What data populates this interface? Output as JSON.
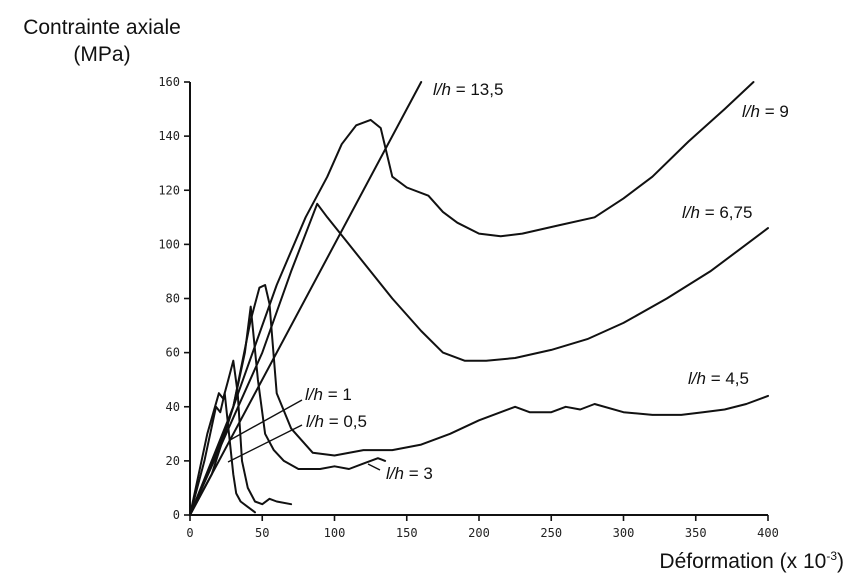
{
  "chart_data": {
    "type": "line",
    "title": "",
    "ylabel_line1": "Contrainte axiale",
    "ylabel_line2": "(MPa)",
    "xlabel_main": "Déformation (x 10",
    "xlabel_exp": "-3",
    "xlabel_close": ")",
    "xlim": [
      0,
      400
    ],
    "ylim": [
      0,
      160
    ],
    "x_ticks": [
      "0",
      "50",
      "100",
      "150",
      "200",
      "250",
      "300",
      "350",
      "400"
    ],
    "y_ticks": [
      "0",
      "20",
      "40",
      "60",
      "80",
      "100",
      "120",
      "140",
      "160"
    ],
    "grid": false,
    "series": [
      {
        "name": "l/h = 13,5",
        "label_var": "l/h",
        "label_val": " = 13,5",
        "points": [
          [
            0,
            0
          ],
          [
            160,
            160
          ]
        ]
      },
      {
        "name": "l/h = 9",
        "label_var": "l/h",
        "label_val": " = 9",
        "points": [
          [
            0,
            0
          ],
          [
            20,
            25
          ],
          [
            40,
            55
          ],
          [
            60,
            85
          ],
          [
            80,
            110
          ],
          [
            95,
            125
          ],
          [
            105,
            137
          ],
          [
            115,
            144
          ],
          [
            125,
            146
          ],
          [
            132,
            143
          ],
          [
            140,
            125
          ],
          [
            150,
            121
          ],
          [
            165,
            118
          ],
          [
            175,
            112
          ],
          [
            185,
            108
          ],
          [
            200,
            104
          ],
          [
            215,
            103
          ],
          [
            230,
            104
          ],
          [
            255,
            107
          ],
          [
            280,
            110
          ],
          [
            300,
            117
          ],
          [
            320,
            125
          ],
          [
            345,
            138
          ],
          [
            370,
            150
          ],
          [
            390,
            160
          ]
        ]
      },
      {
        "name": "l/h = 6,75",
        "label_var": "l/h",
        "label_val": " = 6,75",
        "points": [
          [
            0,
            0
          ],
          [
            25,
            30
          ],
          [
            50,
            60
          ],
          [
            70,
            90
          ],
          [
            88,
            115
          ],
          [
            95,
            110
          ],
          [
            110,
            100
          ],
          [
            125,
            90
          ],
          [
            140,
            80
          ],
          [
            160,
            68
          ],
          [
            175,
            60
          ],
          [
            190,
            57
          ],
          [
            205,
            57
          ],
          [
            225,
            58
          ],
          [
            250,
            61
          ],
          [
            275,
            65
          ],
          [
            300,
            71
          ],
          [
            330,
            80
          ],
          [
            360,
            90
          ],
          [
            380,
            98
          ],
          [
            400,
            106
          ]
        ]
      },
      {
        "name": "l/h = 4,5",
        "label_var": "l/h",
        "label_val": " = 4,5",
        "points": [
          [
            0,
            0
          ],
          [
            15,
            15
          ],
          [
            30,
            40
          ],
          [
            42,
            72
          ],
          [
            48,
            84
          ],
          [
            52,
            85
          ],
          [
            55,
            78
          ],
          [
            60,
            45
          ],
          [
            70,
            32
          ],
          [
            85,
            23
          ],
          [
            100,
            22
          ],
          [
            120,
            24
          ],
          [
            140,
            24
          ],
          [
            160,
            26
          ],
          [
            180,
            30
          ],
          [
            200,
            35
          ],
          [
            225,
            40
          ],
          [
            235,
            38
          ],
          [
            250,
            38
          ],
          [
            260,
            40
          ],
          [
            270,
            39
          ],
          [
            280,
            41
          ],
          [
            300,
            38
          ],
          [
            320,
            37
          ],
          [
            340,
            37
          ],
          [
            355,
            38
          ],
          [
            370,
            39
          ],
          [
            385,
            41
          ],
          [
            400,
            44
          ]
        ]
      },
      {
        "name": "l/h = 3",
        "label_var": "l/h",
        "label_val": " = 3",
        "points": [
          [
            0,
            0
          ],
          [
            15,
            20
          ],
          [
            30,
            40
          ],
          [
            38,
            60
          ],
          [
            42,
            77
          ],
          [
            47,
            50
          ],
          [
            52,
            30
          ],
          [
            58,
            24
          ],
          [
            65,
            20
          ],
          [
            75,
            17
          ],
          [
            90,
            17
          ],
          [
            100,
            18
          ],
          [
            110,
            17
          ],
          [
            120,
            19
          ],
          [
            130,
            21
          ],
          [
            135,
            20
          ]
        ]
      },
      {
        "name": "l/h = 1",
        "label_var": "l/h",
        "label_val": " = 1",
        "points": [
          [
            0,
            0
          ],
          [
            12,
            30
          ],
          [
            20,
            45
          ],
          [
            23,
            43
          ],
          [
            26,
            49
          ],
          [
            30,
            57
          ],
          [
            33,
            45
          ],
          [
            36,
            20
          ],
          [
            40,
            10
          ],
          [
            45,
            5
          ],
          [
            50,
            4
          ],
          [
            55,
            6
          ],
          [
            60,
            5
          ],
          [
            70,
            4
          ]
        ]
      },
      {
        "name": "l/h = 0,5",
        "label_var": "l/h",
        "label_val": " = 0,5",
        "points": [
          [
            0,
            0
          ],
          [
            10,
            20
          ],
          [
            18,
            40
          ],
          [
            21,
            38
          ],
          [
            24,
            45
          ],
          [
            27,
            30
          ],
          [
            30,
            15
          ],
          [
            32,
            8
          ],
          [
            35,
            5
          ],
          [
            40,
            3
          ],
          [
            45,
            1
          ]
        ]
      }
    ],
    "label_positions_note": ""
  }
}
